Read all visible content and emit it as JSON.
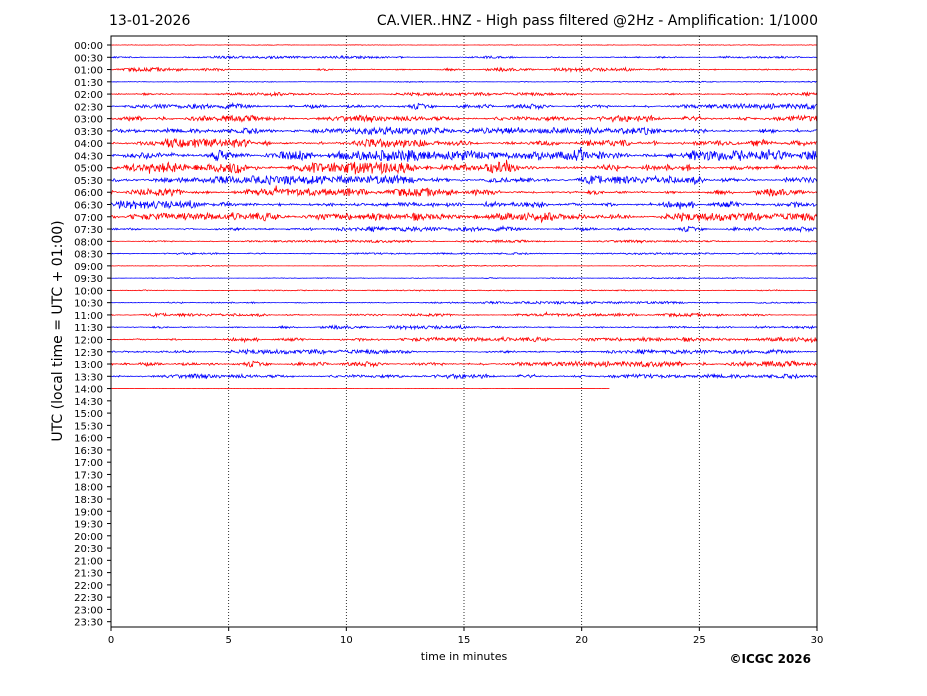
{
  "header": {
    "date": "13-01-2026",
    "title": "CA.VIER..HNZ - High pass filtered @2Hz - Amplification: 1/1000"
  },
  "footer": {
    "copyright": "©ICGC 2026"
  },
  "colors": {
    "odd_trace": "#ff0000",
    "even_trace": "#0000ff",
    "axes": "#000000",
    "grid": "#000000"
  },
  "chart_data": {
    "type": "line",
    "title": "CA.VIER..HNZ - High pass filtered @2Hz - Amplification: 1/1000",
    "xlabel": "time in minutes",
    "ylabel": "UTC (local time = UTC + 01:00)",
    "xlim": [
      0,
      30
    ],
    "x_ticks": [
      "0",
      "5",
      "10",
      "15",
      "20",
      "25",
      "30"
    ],
    "grid": "vertical dotted lines at every 5 minutes",
    "y_ticks": [
      "00:00",
      "00:30",
      "01:00",
      "01:30",
      "02:00",
      "02:30",
      "03:00",
      "03:30",
      "04:00",
      "04:30",
      "05:00",
      "05:30",
      "06:00",
      "06:30",
      "07:00",
      "07:30",
      "08:00",
      "08:30",
      "09:00",
      "09:30",
      "10:00",
      "10:30",
      "11:00",
      "11:30",
      "12:00",
      "12:30",
      "13:00",
      "13:30",
      "14:00",
      "14:30",
      "15:00",
      "15:30",
      "16:00",
      "16:30",
      "17:00",
      "17:30",
      "18:00",
      "18:30",
      "19:00",
      "19:30",
      "20:00",
      "20:30",
      "21:00",
      "21:30",
      "22:00",
      "22:30",
      "23:00",
      "23:30"
    ],
    "trace_colors": [
      "red",
      "blue"
    ],
    "traces": [
      {
        "row": "00:00",
        "amplitude": 0.05,
        "end_minute": 30
      },
      {
        "row": "00:30",
        "amplitude": 0.2,
        "end_minute": 30
      },
      {
        "row": "01:00",
        "amplitude": 0.3,
        "end_minute": 30
      },
      {
        "row": "01:30",
        "amplitude": 0.1,
        "end_minute": 30
      },
      {
        "row": "02:00",
        "amplitude": 0.25,
        "end_minute": 30
      },
      {
        "row": "02:30",
        "amplitude": 0.45,
        "end_minute": 30
      },
      {
        "row": "03:00",
        "amplitude": 0.5,
        "end_minute": 30
      },
      {
        "row": "03:30",
        "amplitude": 0.6,
        "end_minute": 30
      },
      {
        "row": "04:00",
        "amplitude": 0.7,
        "end_minute": 30
      },
      {
        "row": "04:30",
        "amplitude": 0.85,
        "end_minute": 30
      },
      {
        "row": "05:00",
        "amplitude": 0.9,
        "end_minute": 30
      },
      {
        "row": "05:30",
        "amplitude": 0.7,
        "end_minute": 30
      },
      {
        "row": "06:00",
        "amplitude": 0.65,
        "end_minute": 30
      },
      {
        "row": "06:30",
        "amplitude": 0.7,
        "end_minute": 30
      },
      {
        "row": "07:00",
        "amplitude": 0.65,
        "end_minute": 30
      },
      {
        "row": "07:30",
        "amplitude": 0.4,
        "end_minute": 30
      },
      {
        "row": "08:00",
        "amplitude": 0.2,
        "end_minute": 30
      },
      {
        "row": "08:30",
        "amplitude": 0.15,
        "end_minute": 30
      },
      {
        "row": "09:00",
        "amplitude": 0.08,
        "end_minute": 30
      },
      {
        "row": "09:30",
        "amplitude": 0.08,
        "end_minute": 30
      },
      {
        "row": "10:00",
        "amplitude": 0.08,
        "end_minute": 30
      },
      {
        "row": "10:30",
        "amplitude": 0.2,
        "end_minute": 30
      },
      {
        "row": "11:00",
        "amplitude": 0.25,
        "end_minute": 30
      },
      {
        "row": "11:30",
        "amplitude": 0.3,
        "end_minute": 30
      },
      {
        "row": "12:00",
        "amplitude": 0.35,
        "end_minute": 30
      },
      {
        "row": "12:30",
        "amplitude": 0.35,
        "end_minute": 30
      },
      {
        "row": "13:00",
        "amplitude": 0.45,
        "end_minute": 30
      },
      {
        "row": "13:30",
        "amplitude": 0.35,
        "end_minute": 30
      },
      {
        "row": "14:00",
        "amplitude": 0.02,
        "end_minute": 21.2
      }
    ]
  }
}
